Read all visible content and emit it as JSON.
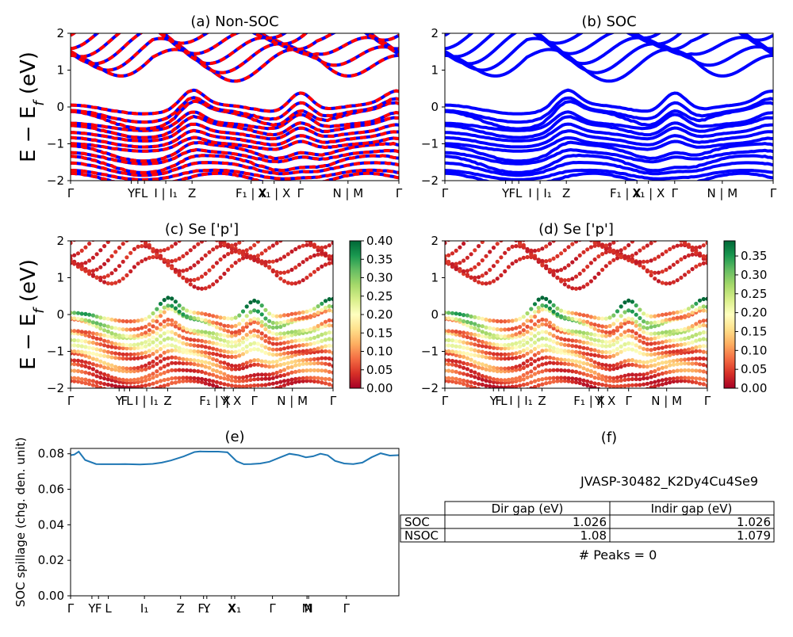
{
  "colors": {
    "band": "#0000ff",
    "nonsoc_overlay": "#ff0000",
    "spillage_line": "#1f77b4"
  },
  "colormap": "RdYlGn",
  "axis_ylabel_main": "E − E_f (eV)",
  "chart_data": [
    {
      "id": "a",
      "type": "line",
      "title": "(a) Non-SOC",
      "ylim": [
        -2,
        2
      ],
      "yticks": [
        "2",
        "1",
        "0",
        "−1",
        "−2"
      ],
      "xticks": [
        "Γ",
        "Y",
        "F",
        "L",
        "I | I₁",
        "Z",
        "F₁ | X",
        "Y",
        "X₁ | X",
        "Γ",
        "N | M",
        "Γ"
      ],
      "series": [
        "Non-SOC bands (red-blue dashed)"
      ]
    },
    {
      "id": "b",
      "type": "line",
      "title": "(b) SOC",
      "ylim": [
        -2,
        2
      ],
      "yticks": [
        "2",
        "1",
        "0",
        "−1",
        "−2"
      ],
      "xticks": [
        "Γ",
        "Y",
        "F",
        "L",
        "I | I₁",
        "Z",
        "F₁ | X",
        "Y",
        "X₁ | X",
        "Γ",
        "N | M",
        "Γ"
      ],
      "series": [
        "SOC bands"
      ]
    },
    {
      "id": "c",
      "type": "scatter",
      "title": "(c)  Se ['p']",
      "ylim": [
        -2,
        2
      ],
      "yticks": [
        "2",
        "1",
        "0",
        "−1",
        "−2"
      ],
      "xticks": [
        "Γ",
        "Y",
        "F",
        "L",
        "I | I₁",
        "Z",
        "F₁ | X",
        "Y",
        "| X",
        "Γ",
        "N | M",
        "Γ"
      ],
      "colorbar": {
        "min": 0.0,
        "max": 0.4,
        "ticks": [
          "0.40",
          "0.35",
          "0.30",
          "0.25",
          "0.20",
          "0.15",
          "0.10",
          "0.05",
          "0.00"
        ]
      }
    },
    {
      "id": "d",
      "type": "scatter",
      "title": "(d) Se ['p']",
      "ylim": [
        -2,
        2
      ],
      "yticks": [
        "2",
        "1",
        "0",
        "−1",
        "−2"
      ],
      "xticks": [
        "Γ",
        "Y",
        "F",
        "L",
        "I | I₁",
        "Z",
        "F₁ | X",
        "Y",
        "| X",
        "Γ",
        "N | M",
        "Γ"
      ],
      "colorbar": {
        "min": 0.0,
        "max": 0.39,
        "ticks": [
          "0.35",
          "0.30",
          "0.25",
          "0.20",
          "0.15",
          "0.10",
          "0.05",
          "0.00"
        ]
      }
    },
    {
      "id": "e",
      "type": "line",
      "title": "(e)",
      "ylabel": "SOC spillage (chg. den. unit)",
      "ylim": [
        0,
        0.083
      ],
      "yticks": [
        "0.08",
        "0.06",
        "0.04",
        "0.02",
        "0.00"
      ],
      "xticks": [
        "Γ",
        "Y",
        "F",
        "L",
        "I₁",
        "Z",
        "F₁",
        "Y",
        "X",
        "X₁",
        "Γ",
        "M",
        "N",
        "Γ"
      ],
      "x": [
        0,
        0.2,
        0.45,
        0.8,
        1.4,
        1.8,
        2.6,
        3.0,
        3.8,
        4.5,
        5.0,
        5.5,
        6.2,
        6.8,
        7.1,
        7.6,
        8.1,
        8.6,
        9.1,
        9.5,
        9.9,
        10.4,
        10.9,
        11.5,
        12.0,
        12.5,
        12.9,
        13.3,
        13.7,
        14.1,
        14.5,
        15.0,
        15.5,
        16.0,
        16.5,
        17.0,
        17.5,
        18.0
      ],
      "y": [
        0.0792,
        0.0795,
        0.0812,
        0.0765,
        0.0742,
        0.0741,
        0.0741,
        0.0742,
        0.074,
        0.0743,
        0.075,
        0.0762,
        0.0785,
        0.081,
        0.0813,
        0.0812,
        0.0812,
        0.0808,
        0.0758,
        0.0741,
        0.0742,
        0.0745,
        0.0755,
        0.078,
        0.08,
        0.0792,
        0.078,
        0.0786,
        0.08,
        0.0791,
        0.076,
        0.0745,
        0.0742,
        0.075,
        0.078,
        0.0803,
        0.079,
        0.0792
      ]
    },
    {
      "id": "f",
      "type": "table",
      "title": "(f)",
      "subtitle": "JVASP-30482_K2Dy4Cu4Se9",
      "columns": [
        "",
        "Dir gap (eV)",
        "Indir gap (eV)"
      ],
      "rows": [
        [
          "SOC",
          "1.026",
          "1.026"
        ],
        [
          "NSOC",
          "1.08",
          "1.079"
        ]
      ],
      "footnote": "# Peaks = 0"
    }
  ]
}
